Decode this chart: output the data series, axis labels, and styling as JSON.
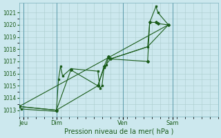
{
  "bg_color": "#cce8ee",
  "grid_color": "#aacccc",
  "line_color": "#1a5c1a",
  "marker_color": "#1a5c1a",
  "text_color": "#1a5c1a",
  "xlabel": "Pression niveau de la mer( hPa )",
  "ylim": [
    1012.5,
    1021.8
  ],
  "yticks": [
    1013,
    1014,
    1015,
    1016,
    1017,
    1018,
    1019,
    1020,
    1021
  ],
  "xlim": [
    0,
    96
  ],
  "day_positions": [
    2,
    18,
    50,
    74
  ],
  "day_labels": [
    "Jeu",
    "Dim",
    "Ven",
    "Sam"
  ],
  "series1_x": [
    0,
    1,
    18,
    19,
    20,
    21,
    25,
    38,
    39,
    40,
    41,
    42,
    43,
    44,
    62,
    63,
    66,
    67,
    72
  ],
  "series1_y": [
    1013.3,
    1013.1,
    1012.9,
    1015.5,
    1016.6,
    1015.8,
    1016.4,
    1016.2,
    1014.8,
    1015.0,
    1016.5,
    1016.7,
    1017.3,
    1017.2,
    1018.2,
    1020.2,
    1021.5,
    1021.0,
    1020.0
  ],
  "series2_x": [
    0,
    18,
    25,
    38,
    41,
    43,
    44,
    62,
    63,
    66,
    67,
    72
  ],
  "series2_y": [
    1013.3,
    1013.0,
    1016.3,
    1015.0,
    1016.6,
    1017.4,
    1017.2,
    1017.0,
    1020.2,
    1020.2,
    1020.1,
    1020.0
  ],
  "series3_x": [
    0,
    18,
    38,
    41,
    44,
    62,
    72
  ],
  "series3_y": [
    1013.3,
    1013.0,
    1015.0,
    1016.5,
    1017.2,
    1018.2,
    1020.0
  ],
  "series4_x": [
    0,
    72
  ],
  "series4_y": [
    1013.3,
    1020.0
  ]
}
